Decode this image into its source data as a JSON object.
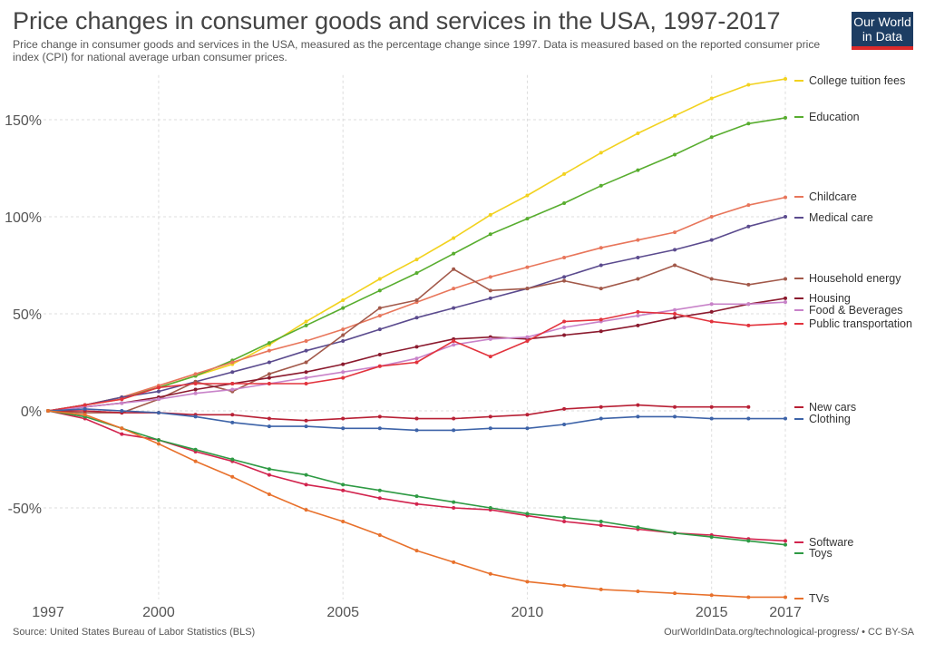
{
  "header": {
    "title": "Price changes in consumer goods and services in the USA, 1997-2017",
    "subtitle": "Price change in consumer goods and services in the USA, measured as the percentage change since 1997. Data is measured based on the reported consumer price index (CPI) for national average urban consumer prices."
  },
  "logo": {
    "line1": "Our World",
    "line2": "in Data",
    "colors": {
      "bg": "#1d3d63",
      "bar": "#dc2a2a"
    }
  },
  "footer": {
    "source": "Source: United States Bureau of Labor Statistics (BLS)",
    "credit": "OurWorldInData.org/technological-progress/ • CC BY-SA"
  },
  "chart_data": {
    "type": "line",
    "x_ticks": [
      "1997",
      "2000",
      "2005",
      "2010",
      "2015",
      "2017"
    ],
    "y_ticks": [
      {
        "value": 150,
        "label": "150%"
      },
      {
        "value": 100,
        "label": "100%"
      },
      {
        "value": 50,
        "label": "50%"
      },
      {
        "value": 0,
        "label": "0%"
      },
      {
        "value": -50,
        "label": "-50%"
      }
    ],
    "xlim": [
      1997,
      2017
    ],
    "ylim": [
      -97,
      173
    ],
    "grid": "dashed",
    "legend": "right, labels at line ends",
    "series": [
      {
        "name": "College tuition fees",
        "color": "#f2d21f",
        "x": [
          1997,
          1998,
          1999,
          2000,
          2001,
          2002,
          2003,
          2004,
          2005,
          2006,
          2007,
          2008,
          2009,
          2010,
          2011,
          2012,
          2013,
          2014,
          2015,
          2016,
          2017
        ],
        "values": [
          0,
          3,
          6,
          12,
          18,
          24,
          34,
          46,
          57,
          68,
          78,
          89,
          101,
          111,
          122,
          133,
          143,
          152,
          161,
          168,
          171
        ]
      },
      {
        "name": "Education",
        "color": "#58ad2f",
        "x": [
          1997,
          1998,
          1999,
          2000,
          2001,
          2002,
          2003,
          2004,
          2005,
          2006,
          2007,
          2008,
          2009,
          2010,
          2011,
          2012,
          2013,
          2014,
          2015,
          2016,
          2017
        ],
        "values": [
          0,
          3,
          7,
          12,
          18,
          26,
          35,
          44,
          53,
          62,
          71,
          81,
          91,
          99,
          107,
          116,
          124,
          132,
          141,
          148,
          151
        ]
      },
      {
        "name": "Childcare",
        "color": "#e8765b",
        "x": [
          1997,
          1998,
          1999,
          2000,
          2001,
          2002,
          2003,
          2004,
          2005,
          2006,
          2007,
          2008,
          2009,
          2010,
          2011,
          2012,
          2013,
          2014,
          2015,
          2016,
          2017
        ],
        "values": [
          0,
          3,
          7,
          13,
          19,
          25,
          31,
          36,
          42,
          49,
          56,
          63,
          69,
          74,
          79,
          84,
          88,
          92,
          100,
          106,
          110
        ]
      },
      {
        "name": "Medical care",
        "color": "#5b4b8e",
        "x": [
          1997,
          1998,
          1999,
          2000,
          2001,
          2002,
          2003,
          2004,
          2005,
          2006,
          2007,
          2008,
          2009,
          2010,
          2011,
          2012,
          2013,
          2014,
          2015,
          2016,
          2017
        ],
        "values": [
          0,
          3,
          7,
          10,
          15,
          20,
          25,
          31,
          36,
          42,
          48,
          53,
          58,
          63,
          69,
          75,
          79,
          83,
          88,
          95,
          100
        ]
      },
      {
        "name": "Household energy",
        "color": "#a2594a",
        "x": [
          1997,
          1998,
          1999,
          2000,
          2001,
          2002,
          2003,
          2004,
          2005,
          2006,
          2007,
          2008,
          2009,
          2010,
          2011,
          2012,
          2013,
          2014,
          2015,
          2016,
          2017
        ],
        "values": [
          0,
          -1,
          -1,
          6,
          15,
          10,
          19,
          25,
          39,
          53,
          57,
          73,
          62,
          63,
          67,
          63,
          68,
          75,
          68,
          65,
          68
        ]
      },
      {
        "name": "Housing",
        "color": "#8b1a2e",
        "x": [
          1997,
          1998,
          1999,
          2000,
          2001,
          2002,
          2003,
          2004,
          2005,
          2006,
          2007,
          2008,
          2009,
          2010,
          2011,
          2012,
          2013,
          2014,
          2015,
          2016,
          2017
        ],
        "values": [
          0,
          2,
          4,
          7,
          11,
          14,
          17,
          20,
          24,
          29,
          33,
          37,
          38,
          37,
          39,
          41,
          44,
          48,
          51,
          55,
          58
        ]
      },
      {
        "name": "Food & Beverages",
        "color": "#c883c9",
        "x": [
          1997,
          1998,
          1999,
          2000,
          2001,
          2002,
          2003,
          2004,
          2005,
          2006,
          2007,
          2008,
          2009,
          2010,
          2011,
          2012,
          2013,
          2014,
          2015,
          2016,
          2017
        ],
        "values": [
          0,
          2,
          4,
          6,
          9,
          11,
          14,
          17,
          20,
          23,
          27,
          34,
          37,
          38,
          43,
          46,
          49,
          52,
          55,
          55,
          56
        ]
      },
      {
        "name": "Public transportation",
        "color": "#e2333d",
        "x": [
          1997,
          1998,
          1999,
          2000,
          2001,
          2002,
          2003,
          2004,
          2005,
          2006,
          2007,
          2008,
          2009,
          2010,
          2011,
          2012,
          2013,
          2014,
          2015,
          2016,
          2017
        ],
        "values": [
          0,
          3,
          6,
          12,
          14,
          14,
          14,
          14,
          17,
          23,
          25,
          36,
          28,
          36,
          46,
          47,
          51,
          50,
          46,
          44,
          45
        ]
      },
      {
        "name": "New cars",
        "color": "#b82035",
        "x": [
          1997,
          1998,
          1999,
          2000,
          2001,
          2002,
          2003,
          2004,
          2005,
          2006,
          2007,
          2008,
          2009,
          2010,
          2011,
          2012,
          2013,
          2014,
          2015,
          2016
        ],
        "values": [
          0,
          0,
          -1,
          -1,
          -2,
          -2,
          -4,
          -5,
          -4,
          -3,
          -4,
          -4,
          -3,
          -2,
          1,
          2,
          3,
          2,
          2,
          2
        ]
      },
      {
        "name": "Clothing",
        "color": "#3d63a8",
        "x": [
          1997,
          1998,
          1999,
          2000,
          2001,
          2002,
          2003,
          2004,
          2005,
          2006,
          2007,
          2008,
          2009,
          2010,
          2011,
          2012,
          2013,
          2014,
          2015,
          2016,
          2017
        ],
        "values": [
          0,
          1,
          0,
          -1,
          -3,
          -6,
          -8,
          -8,
          -9,
          -9,
          -10,
          -10,
          -9,
          -9,
          -7,
          -4,
          -3,
          -3,
          -4,
          -4,
          -4
        ]
      },
      {
        "name": "Software",
        "color": "#d2244e",
        "x": [
          1997,
          1998,
          1999,
          2000,
          2001,
          2002,
          2003,
          2004,
          2005,
          2006,
          2007,
          2008,
          2009,
          2010,
          2011,
          2012,
          2013,
          2014,
          2015,
          2016,
          2017
        ],
        "values": [
          0,
          -4,
          -12,
          -15,
          -21,
          -26,
          -33,
          -38,
          -41,
          -45,
          -48,
          -50,
          -51,
          -54,
          -57,
          -59,
          -61,
          -63,
          -64,
          -66,
          -67
        ]
      },
      {
        "name": "Toys",
        "color": "#2e9a44",
        "x": [
          1997,
          1998,
          1999,
          2000,
          2001,
          2002,
          2003,
          2004,
          2005,
          2006,
          2007,
          2008,
          2009,
          2010,
          2011,
          2012,
          2013,
          2014,
          2015,
          2016,
          2017
        ],
        "values": [
          0,
          -3,
          -9,
          -15,
          -20,
          -25,
          -30,
          -33,
          -38,
          -41,
          -44,
          -47,
          -50,
          -53,
          -55,
          -57,
          -60,
          -63,
          -65,
          -67,
          -69
        ]
      },
      {
        "name": "TVs",
        "color": "#e8712c",
        "x": [
          1997,
          1998,
          1999,
          2000,
          2001,
          2002,
          2003,
          2004,
          2005,
          2006,
          2007,
          2008,
          2009,
          2010,
          2011,
          2012,
          2013,
          2014,
          2015,
          2016,
          2017
        ],
        "values": [
          0,
          -2,
          -9,
          -17,
          -26,
          -34,
          -43,
          -51,
          -57,
          -64,
          -72,
          -78,
          -84,
          -88,
          -90,
          -92,
          -93,
          -94,
          -95,
          -96,
          -96
        ]
      }
    ]
  }
}
